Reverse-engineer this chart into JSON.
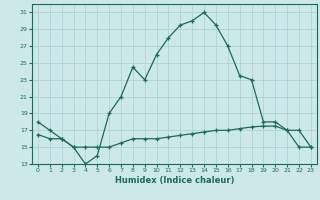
{
  "title": "",
  "xlabel": "Humidex (Indice chaleur)",
  "xlim": [
    -0.5,
    23.5
  ],
  "ylim": [
    13,
    32
  ],
  "yticks": [
    13,
    15,
    17,
    19,
    21,
    23,
    25,
    27,
    29,
    31
  ],
  "xticks": [
    0,
    1,
    2,
    3,
    4,
    5,
    6,
    7,
    8,
    9,
    10,
    11,
    12,
    13,
    14,
    15,
    16,
    17,
    18,
    19,
    20,
    21,
    22,
    23
  ],
  "bg_color": "#cce8e8",
  "line_color": "#1a6b5a",
  "grid_color": "#aacfcf",
  "line1_x": [
    0,
    1,
    2,
    3,
    4,
    5,
    6,
    7,
    8,
    9,
    10,
    11,
    12,
    13,
    14,
    15,
    16,
    17,
    18,
    19,
    20,
    21,
    22,
    23
  ],
  "line1_y": [
    18,
    17,
    16,
    15,
    13,
    14,
    19,
    21,
    24.5,
    23,
    26,
    28,
    29.5,
    30,
    31,
    29.5,
    27,
    23.5,
    23,
    18,
    18,
    17,
    15,
    15
  ],
  "line2_x": [
    0,
    1,
    2,
    3,
    4,
    5,
    6,
    7,
    8,
    9,
    10,
    11,
    12,
    13,
    14,
    15,
    16,
    17,
    18,
    19,
    20,
    21,
    22,
    23
  ],
  "line2_y": [
    16.5,
    16,
    16,
    15,
    15,
    15,
    15,
    15.5,
    16,
    16,
    16,
    16.2,
    16.4,
    16.6,
    16.8,
    17,
    17,
    17.2,
    17.4,
    17.5,
    17.5,
    17,
    17,
    15
  ]
}
